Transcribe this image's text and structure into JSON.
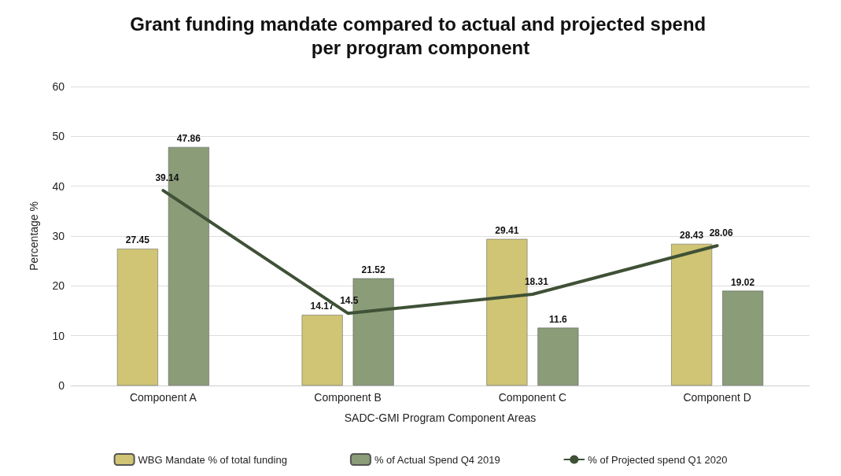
{
  "chart_data": {
    "type": "bar",
    "title": "Grant funding mandate compared to actual and projected spend per program component",
    "xlabel": "SADC-GMI Program Component Areas",
    "ylabel": "Percentage %",
    "categories": [
      "Component A",
      "Component B",
      "Component C",
      "Component D"
    ],
    "series": [
      {
        "name": "WBG Mandate % of total funding",
        "color": "#cfc574",
        "values": [
          27.45,
          14.17,
          29.41,
          28.43
        ]
      },
      {
        "name": "% of Actual Spend Q4 2019",
        "color": "#8a9c78",
        "values": [
          47.86,
          21.52,
          11.6,
          19.02
        ]
      },
      {
        "name": "% of Projected spend Q1 2020",
        "type": "line",
        "color": "#3f5136",
        "values": [
          39.14,
          14.5,
          18.31,
          28.06
        ]
      }
    ],
    "ylim": [
      0,
      60
    ],
    "yticks": [
      0,
      10,
      20,
      30,
      40,
      50,
      60
    ],
    "grid": "y",
    "legend": "bottom",
    "data_labels": true,
    "marker": "none",
    "line_style": "solid"
  }
}
